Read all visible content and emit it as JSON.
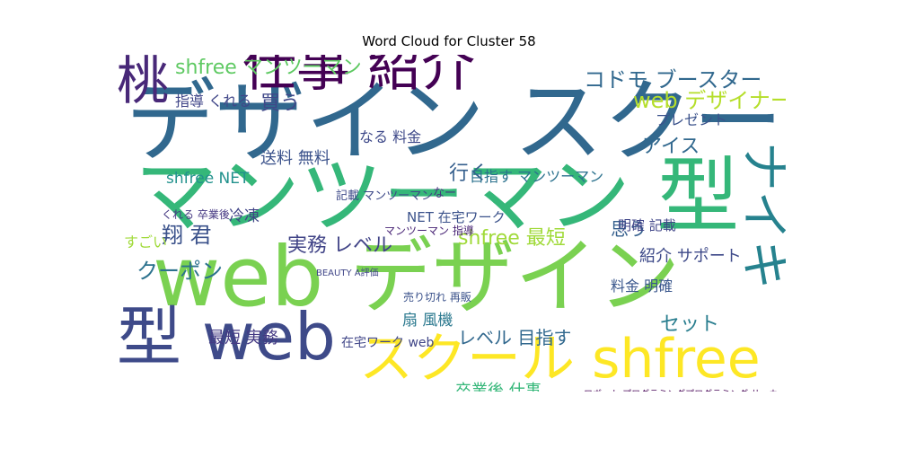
{
  "chart_data": {
    "type": "wordcloud",
    "title": "Word Cloud for Cluster 58",
    "palette": [
      "#440154",
      "#3b528b",
      "#21918c",
      "#5ec962",
      "#fde725"
    ],
    "words": [
      {
        "text": "デザイン スクール",
        "weight": 1.0,
        "color": "#31688e",
        "vertical": false
      },
      {
        "text": "マンツーマン 型",
        "weight": 0.92,
        "color": "#35b779",
        "vertical": false
      },
      {
        "text": "web デザイン",
        "weight": 0.88,
        "color": "#7ad151",
        "vertical": false
      },
      {
        "text": "仕事 紹介",
        "weight": 0.72,
        "color": "#440154",
        "vertical": false
      },
      {
        "text": "型 web",
        "weight": 0.72,
        "color": "#3e4a89",
        "vertical": false
      },
      {
        "text": "スクール shfree",
        "weight": 0.66,
        "color": "#fde725",
        "vertical": false
      },
      {
        "text": "桃",
        "weight": 0.5,
        "color": "#482878",
        "vertical": false
      },
      {
        "text": "ナイキ",
        "weight": 0.48,
        "color": "#26828e",
        "vertical": true
      },
      {
        "text": "shfree マンツーマン",
        "weight": 0.26,
        "color": "#5ec962",
        "vertical": false
      },
      {
        "text": "コドモ ブースター",
        "weight": 0.3,
        "color": "#31688e",
        "vertical": false
      },
      {
        "text": "web デザイナー",
        "weight": 0.28,
        "color": "#b5de2b",
        "vertical": false
      },
      {
        "text": "アイス",
        "weight": 0.22,
        "color": "#31688e",
        "vertical": false
      },
      {
        "text": "行く",
        "weight": 0.22,
        "color": "#355f8d",
        "vertical": false
      },
      {
        "text": "翔 君",
        "weight": 0.25,
        "color": "#3b528b",
        "vertical": false
      },
      {
        "text": "実務 レベル",
        "weight": 0.22,
        "color": "#414487",
        "vertical": false
      },
      {
        "text": "クーポン",
        "weight": 0.24,
        "color": "#2c728e",
        "vertical": false
      },
      {
        "text": "shfree 最短",
        "weight": 0.24,
        "color": "#a0da39",
        "vertical": false
      },
      {
        "text": "買う",
        "weight": 0.22,
        "color": "#3f4788",
        "vertical": false
      },
      {
        "text": "指導 くれる",
        "weight": 0.17,
        "color": "#404688",
        "vertical": false
      },
      {
        "text": "なる 料金",
        "weight": 0.16,
        "color": "#3e4989",
        "vertical": false
      },
      {
        "text": "送料 無料",
        "weight": 0.18,
        "color": "#3b528b",
        "vertical": false
      },
      {
        "text": "プレゼント",
        "weight": 0.15,
        "color": "#3b528b",
        "vertical": false
      },
      {
        "text": "目指す マンツーマン",
        "weight": 0.17,
        "color": "#2c728e",
        "vertical": false
      },
      {
        "text": "shfree NET",
        "weight": 0.17,
        "color": "#21918c",
        "vertical": false
      },
      {
        "text": "冷凍",
        "weight": 0.17,
        "color": "#414487",
        "vertical": false
      },
      {
        "text": "思う",
        "weight": 0.2,
        "color": "#355f8d",
        "vertical": false
      },
      {
        "text": "紹介 サポート",
        "weight": 0.17,
        "color": "#3e4a89",
        "vertical": false
      },
      {
        "text": "セット",
        "weight": 0.22,
        "color": "#287d8e",
        "vertical": false
      },
      {
        "text": "最短 実務",
        "weight": 0.2,
        "color": "#443983",
        "vertical": false
      },
      {
        "text": "扇 風機",
        "weight": 0.17,
        "color": "#2a788e",
        "vertical": false
      },
      {
        "text": "レベル 目指す",
        "weight": 0.2,
        "color": "#31688e",
        "vertical": false
      },
      {
        "text": "料金 明確",
        "weight": 0.15,
        "color": "#39568c",
        "vertical": false
      },
      {
        "text": "明確 記載",
        "weight": 0.15,
        "color": "#404588",
        "vertical": false
      },
      {
        "text": "NET 在宅ワーク",
        "weight": 0.15,
        "color": "#3b528b",
        "vertical": false
      },
      {
        "text": "卒業後 仕事",
        "weight": 0.17,
        "color": "#35b779",
        "vertical": false
      },
      {
        "text": "在宅ワーク web",
        "weight": 0.13,
        "color": "#404688",
        "vertical": false
      },
      {
        "text": "すごい",
        "weight": 0.12,
        "color": "#a0da39",
        "vertical": false
      },
      {
        "text": "記載 マンツーマン",
        "weight": 0.12,
        "color": "#3e4a89",
        "vertical": false
      },
      {
        "text": "マンツーマン 指導",
        "weight": 0.11,
        "color": "#482475",
        "vertical": false
      },
      {
        "text": "くれる 卒業後",
        "weight": 0.11,
        "color": "#453882",
        "vertical": false
      },
      {
        "text": "なー",
        "weight": 0.12,
        "color": "#46337e",
        "vertical": false
      },
      {
        "text": "売り切れ 再販",
        "weight": 0.1,
        "color": "#3b528b",
        "vertical": false
      },
      {
        "text": "ロボット プログラミングプログラミング サッカー",
        "weight": 0.09,
        "color": "#440154",
        "vertical": false
      },
      {
        "text": "BEAUTY A評価",
        "weight": 0.08,
        "color": "#404688",
        "vertical": false
      }
    ]
  }
}
